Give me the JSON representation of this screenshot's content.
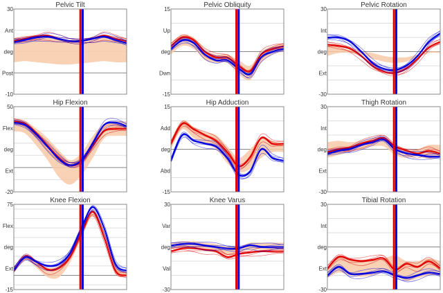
{
  "colors": {
    "left": "#e00000",
    "right": "#0000e0",
    "normal_band": "#f8c9a8",
    "grid": "#dddddd",
    "zero": "#888888"
  },
  "x_percent": [
    0,
    10,
    20,
    30,
    40,
    50,
    60,
    70,
    80,
    90,
    100
  ],
  "chart_data": [
    {
      "type": "line",
      "title": "Pelvic Tilt",
      "ylim": [
        -10,
        30
      ],
      "grid_step": 10,
      "tick_labels": [
        "30",
        "Ant",
        "deg",
        "Post",
        "-10"
      ],
      "toe_off": {
        "left": 59,
        "right": 61
      },
      "normal_band": {
        "upper": [
          16,
          17,
          17.5,
          17,
          16,
          15.5,
          16,
          17,
          17.5,
          17,
          16
        ],
        "lower": [
          5,
          5.5,
          5,
          4.5,
          4,
          4,
          4.5,
          5,
          5.5,
          5,
          5
        ]
      },
      "series": [
        {
          "side": "left",
          "values": [
            15,
            16,
            17,
            17.5,
            16,
            15,
            15,
            16,
            17.5,
            16,
            15
          ]
        },
        {
          "side": "right",
          "values": [
            14.5,
            15.5,
            16.5,
            17,
            16,
            15,
            15,
            16,
            17,
            15.5,
            14
          ]
        }
      ]
    },
    {
      "type": "line",
      "title": "Pelvic Obliquity",
      "ylim": [
        -15,
        15
      ],
      "grid_step": 10,
      "tick_labels": [
        "15",
        "Up",
        "deg",
        "Dwn",
        "-15"
      ],
      "toe_off": {
        "left": 58,
        "right": 60
      },
      "normal_band": {
        "upper": [
          3,
          6,
          5,
          1,
          -1,
          -1,
          -3,
          -5,
          0,
          2,
          3
        ],
        "lower": [
          -1,
          2,
          1,
          -3,
          -4,
          -4,
          -8,
          -10,
          -4,
          -1,
          0
        ]
      },
      "series": [
        {
          "side": "left",
          "values": [
            2,
            5,
            4,
            0,
            -2,
            -2,
            -5,
            -7,
            -1,
            1,
            2
          ]
        },
        {
          "side": "right",
          "values": [
            1,
            4,
            3,
            -1,
            -3,
            -3,
            -6,
            -8,
            -2,
            0,
            1
          ]
        }
      ]
    },
    {
      "type": "line",
      "title": "Pelvic Rotation",
      "ylim": [
        -30,
        30
      ],
      "grid_step": 10,
      "tick_labels": [
        "30",
        "Int",
        "deg",
        "Ext",
        "-30"
      ],
      "toe_off": {
        "left": 59,
        "right": 61
      },
      "normal_band": {
        "upper": [
          5,
          3,
          1,
          0,
          -1,
          -3,
          -4,
          -4,
          -2,
          0,
          0
        ],
        "lower": [
          -3,
          -1,
          -1,
          -2,
          -5,
          -7,
          -8,
          -7,
          -4,
          -1,
          -1
        ]
      },
      "series": [
        {
          "side": "left",
          "values": [
            5,
            4,
            2,
            -3,
            -10,
            -14,
            -15,
            -12,
            -5,
            3,
            7
          ]
        },
        {
          "side": "right",
          "values": [
            10,
            10,
            7,
            0,
            -8,
            -12,
            -13,
            -10,
            -3,
            7,
            13
          ]
        }
      ]
    },
    {
      "type": "line",
      "title": "Hip Flexion",
      "ylim": [
        -20,
        50
      ],
      "grid_step": 10,
      "tick_labels": [
        "50",
        "Flex",
        "deg",
        "Ext",
        "-20"
      ],
      "toe_off": {
        "left": 59,
        "right": 61
      },
      "normal_band": {
        "upper": [
          40,
          38,
          32,
          24,
          14,
          6,
          12,
          26,
          36,
          38,
          38
        ],
        "lower": [
          30,
          28,
          18,
          6,
          -8,
          -14,
          -6,
          8,
          24,
          26,
          26
        ]
      },
      "series": [
        {
          "side": "left",
          "values": [
            38,
            36,
            28,
            18,
            8,
            2,
            5,
            18,
            30,
            32,
            32
          ]
        },
        {
          "side": "right",
          "values": [
            37,
            35,
            27,
            17,
            7,
            2,
            6,
            20,
            35,
            37,
            34
          ]
        }
      ]
    },
    {
      "type": "line",
      "title": "Hip Adduction",
      "ylim": [
        -15,
        15
      ],
      "grid_step": 10,
      "tick_labels": [
        "15",
        "Add",
        "deg",
        "Abd",
        "-15"
      ],
      "toe_off": {
        "left": 58,
        "right": 60
      },
      "normal_band": {
        "upper": [
          3,
          10,
          8,
          6,
          5,
          1,
          -3,
          0,
          4,
          3,
          2
        ],
        "lower": [
          0,
          7,
          4,
          2,
          0,
          -5,
          -8,
          -7,
          -3,
          -1,
          -1
        ]
      },
      "series": [
        {
          "side": "left",
          "values": [
            2,
            9,
            7,
            5,
            3,
            -1,
            -6,
            -3,
            4,
            2,
            2
          ]
        },
        {
          "side": "right",
          "values": [
            -4,
            5,
            3,
            2,
            1,
            -3,
            -9,
            -8,
            0,
            -3,
            -4
          ]
        }
      ]
    },
    {
      "type": "line",
      "title": "Thigh Rotation",
      "ylim": [
        -30,
        30
      ],
      "grid_step": 10,
      "tick_labels": [
        "30",
        "Int",
        "deg",
        "Ext",
        "-30"
      ],
      "toe_off": {
        "left": 59,
        "right": 61
      },
      "normal_band": {
        "upper": [
          5,
          6,
          5,
          6,
          8,
          8,
          2,
          -1,
          0,
          3,
          3
        ],
        "lower": [
          -6,
          -4,
          -2,
          0,
          2,
          2,
          -4,
          -6,
          -5,
          -7,
          -5
        ]
      },
      "series": [
        {
          "side": "left",
          "values": [
            -2,
            0,
            1,
            4,
            6,
            8,
            2,
            -1,
            -3,
            -1,
            -3
          ]
        },
        {
          "side": "right",
          "values": [
            -3,
            -1,
            0,
            3,
            5,
            7,
            0,
            -3,
            -4,
            -5,
            -5
          ]
        }
      ]
    },
    {
      "type": "line",
      "title": "Knee Flexion",
      "ylim": [
        -15,
        75
      ],
      "grid_step": 10,
      "tick_labels": [
        "75",
        "Flex",
        "deg",
        "Ext",
        "-15"
      ],
      "toe_off": {
        "left": 59,
        "right": 61
      },
      "normal_band": {
        "upper": [
          6,
          20,
          14,
          8,
          10,
          22,
          48,
          68,
          48,
          10,
          5
        ],
        "lower": [
          3,
          16,
          8,
          -2,
          -2,
          14,
          40,
          62,
          40,
          2,
          0
        ]
      },
      "series": [
        {
          "side": "left",
          "values": [
            5,
            20,
            14,
            6,
            8,
            20,
            45,
            67,
            40,
            5,
            0
          ]
        },
        {
          "side": "right",
          "values": [
            6,
            19,
            14,
            10,
            12,
            24,
            50,
            72,
            50,
            12,
            5
          ]
        }
      ]
    },
    {
      "type": "line",
      "title": "Knee Varus",
      "ylim": [
        -30,
        30
      ],
      "grid_step": 10,
      "tick_labels": [
        "30",
        "Var",
        "deg",
        "Val",
        "-30"
      ],
      "toe_off": {
        "left": 58,
        "right": 60
      },
      "normal_band": {
        "upper": [
          3,
          4,
          4,
          3,
          2,
          0,
          0,
          3,
          3,
          3,
          3
        ],
        "lower": [
          -1,
          0,
          0,
          -1,
          -2,
          -6,
          -4,
          -2,
          -2,
          -2,
          -2
        ]
      },
      "series": [
        {
          "side": "left",
          "values": [
            -3,
            -1,
            -1,
            -2,
            -3,
            -7,
            -5,
            -4,
            -3,
            -3,
            -3
          ]
        },
        {
          "side": "right",
          "values": [
            1,
            2,
            2,
            1,
            0,
            -1,
            -1,
            1,
            0,
            0,
            0
          ]
        }
      ]
    },
    {
      "type": "line",
      "title": "Tibial Rotation",
      "ylim": [
        -30,
        30
      ],
      "grid_step": 10,
      "tick_labels": [
        "30",
        "Int",
        "deg",
        "Ext",
        "-30"
      ],
      "toe_off": {
        "left": 59,
        "right": 61
      },
      "normal_band": {
        "upper": [
          -15,
          -7,
          -9,
          -9,
          -9,
          -8,
          -6,
          -10,
          -10,
          -8,
          -10
        ],
        "lower": [
          -22,
          -18,
          -20,
          -21,
          -20,
          -18,
          -20,
          -24,
          -22,
          -20,
          -20
        ]
      },
      "series": [
        {
          "side": "left",
          "values": [
            -15,
            -7,
            -9,
            -10,
            -9,
            -8,
            -16,
            -12,
            -14,
            -10,
            -15
          ]
        },
        {
          "side": "right",
          "values": [
            -20,
            -14,
            -19,
            -19,
            -18,
            -17,
            -20,
            -22,
            -20,
            -18,
            -19
          ]
        }
      ]
    }
  ]
}
